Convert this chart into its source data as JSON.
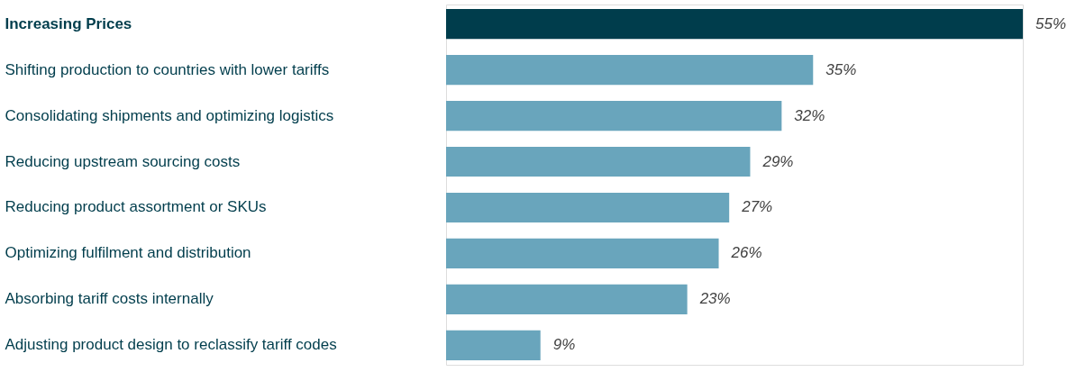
{
  "chart_data": {
    "type": "bar",
    "orientation": "horizontal",
    "categories": [
      "Increasing Prices",
      "Shifting production to countries with lower tariffs",
      "Consolidating shipments and optimizing logistics",
      "Reducing upstream sourcing costs",
      "Reducing product assortment or SKUs",
      "Optimizing fulfilment and distribution",
      "Absorbing tariff costs internally",
      "Adjusting product design to reclassify tariff codes"
    ],
    "values": [
      55,
      35,
      32,
      29,
      27,
      26,
      23,
      9
    ],
    "colors": [
      "#003d4c",
      "#69a5bc",
      "#69a5bc",
      "#69a5bc",
      "#69a5bc",
      "#69a5bc",
      "#69a5bc",
      "#69a5bc"
    ],
    "value_labels": [
      "55%",
      "35%",
      "32%",
      "29%",
      "27%",
      "26%",
      "23%",
      "9%"
    ],
    "tick_labels": "y"
  }
}
